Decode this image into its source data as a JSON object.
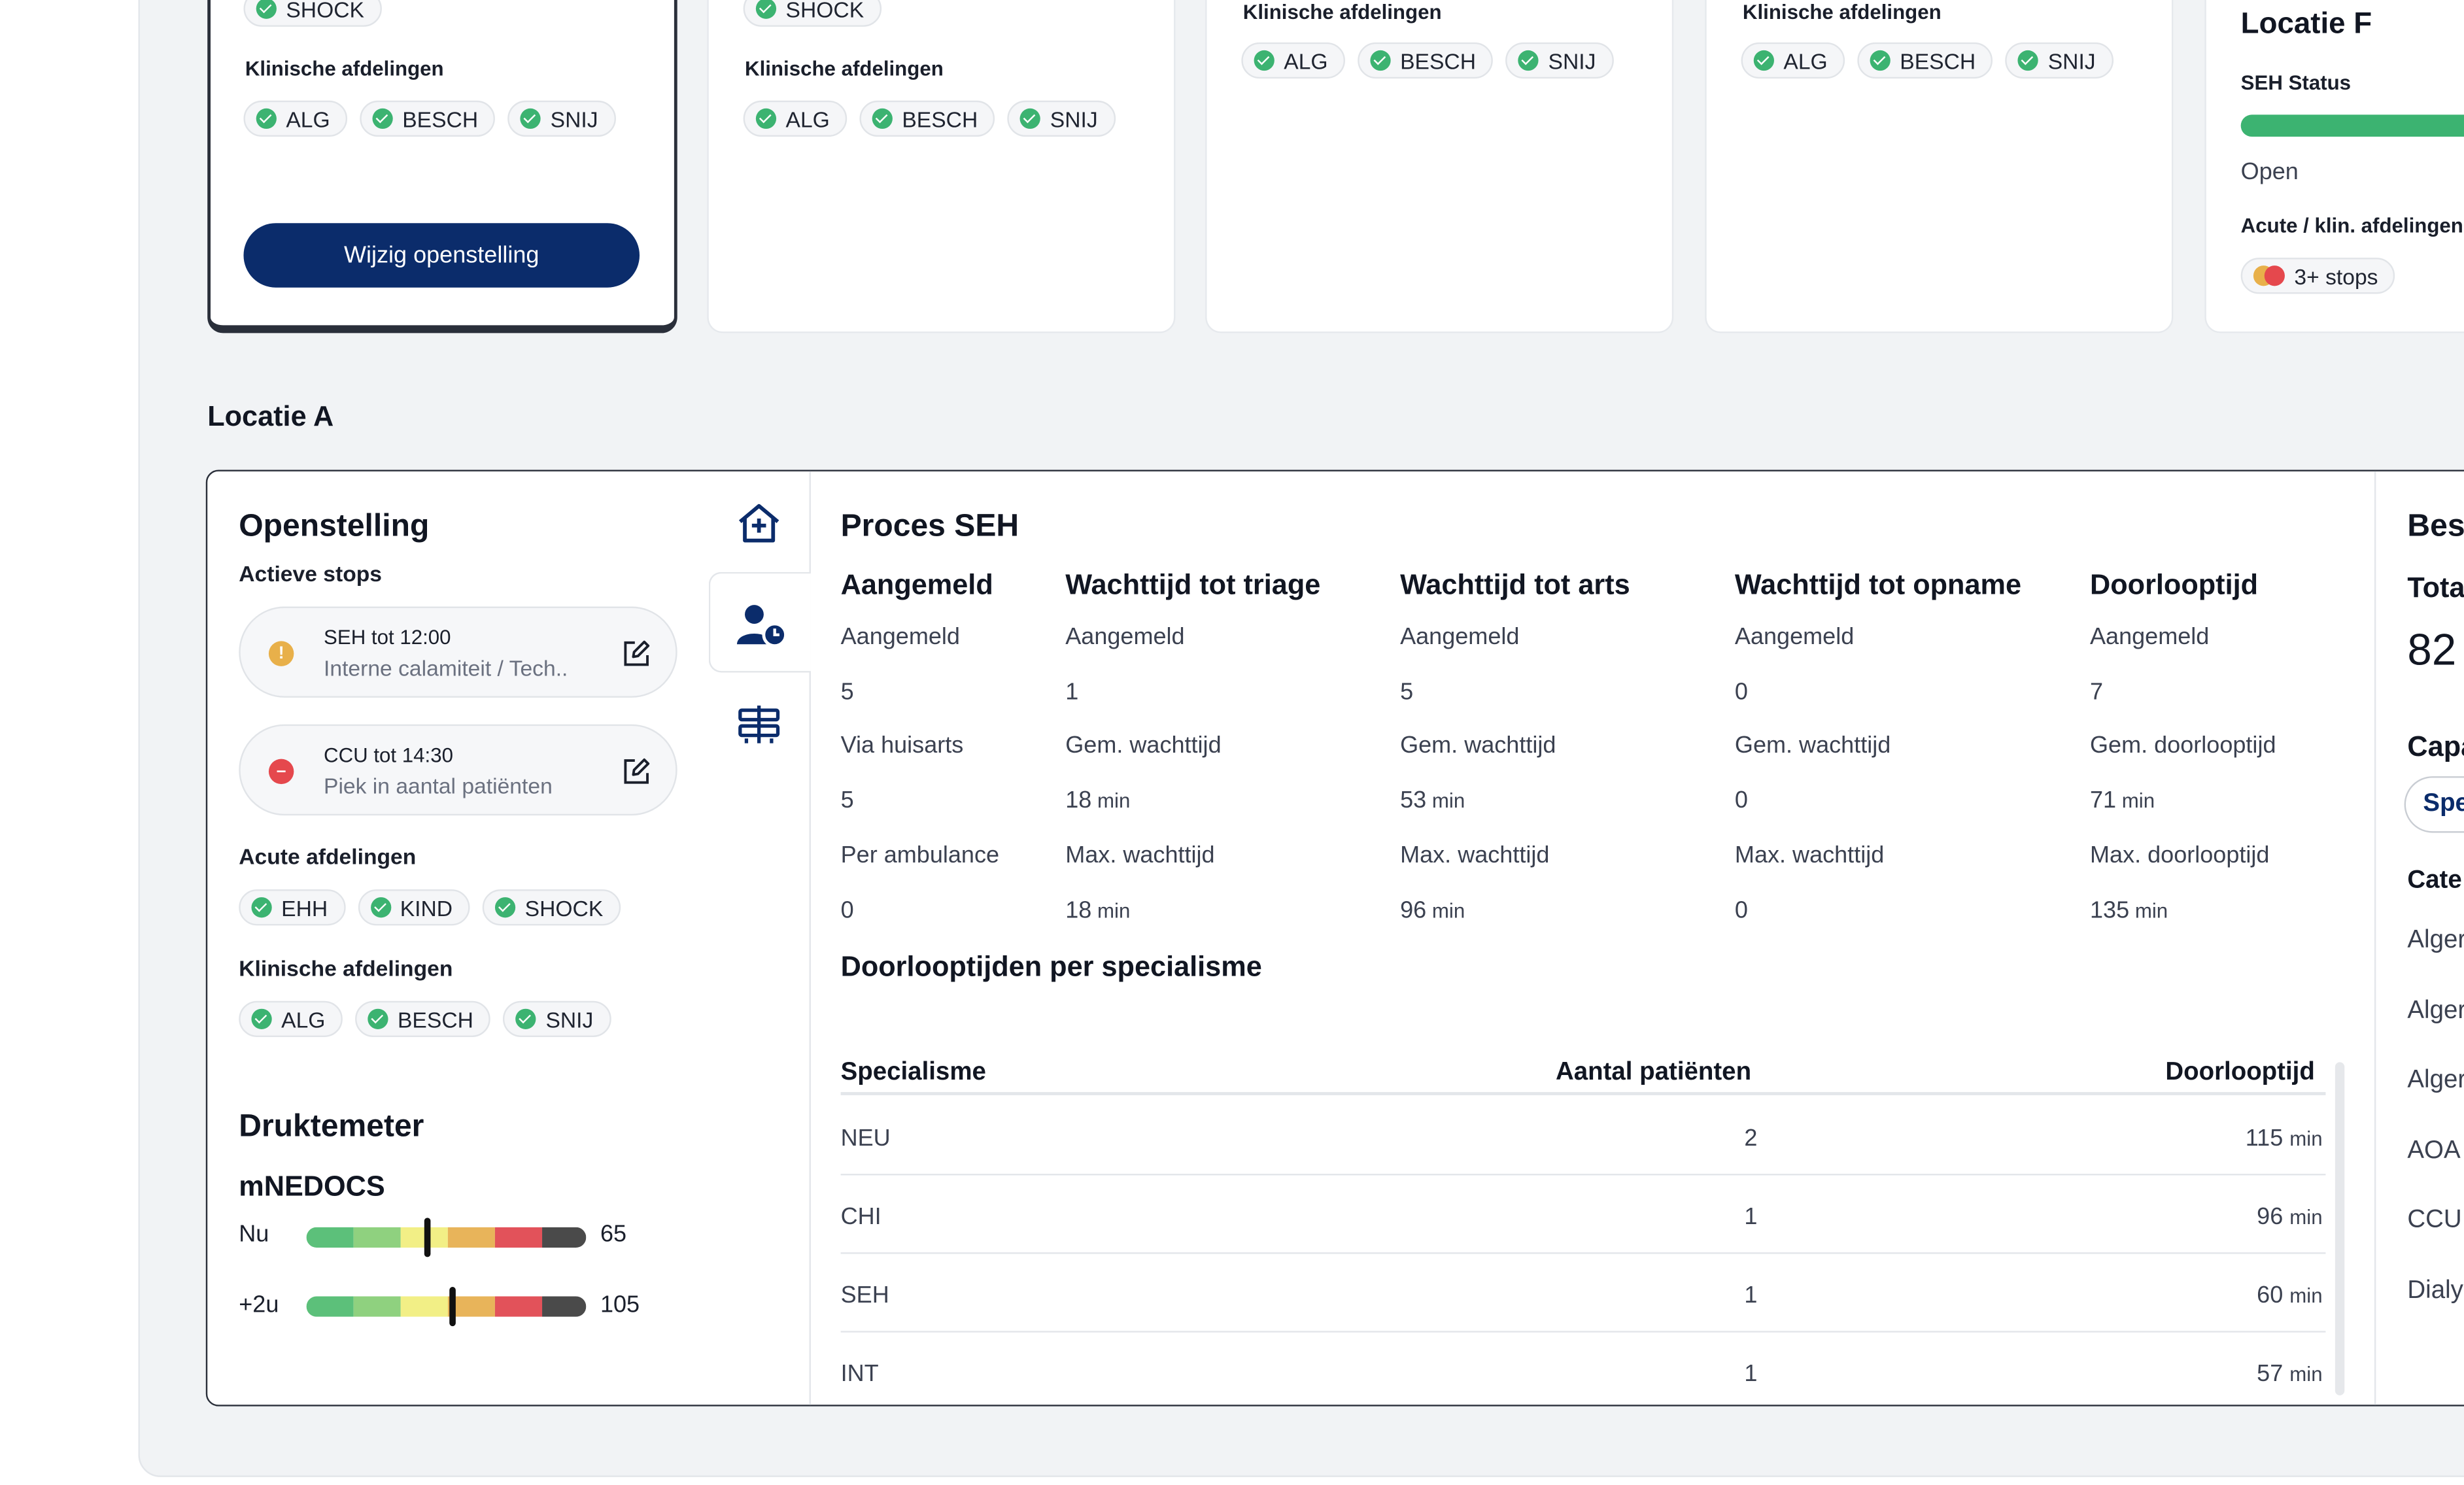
{
  "top_cards": {
    "card1": {
      "acute_partial": "SHOCK",
      "clin_label": "Klinische afdelingen",
      "clin": [
        "ALG",
        "BESCH",
        "SNIJ"
      ],
      "button": "Wijzig openstelling"
    },
    "card2": {
      "acute_partial": "SHOCK",
      "clin_label": "Klinische afdelingen",
      "clin": [
        "ALG",
        "BESCH",
        "SNIJ"
      ]
    },
    "card3": {
      "clin_label": "Klinische afdelingen",
      "clin": [
        "ALG",
        "BESCH",
        "SNIJ"
      ]
    },
    "card4": {
      "clin_label": "Klinische afdelingen",
      "clin": [
        "ALG",
        "BESCH",
        "SNIJ"
      ]
    },
    "card5": {
      "title": "Locatie F",
      "status_label": "SEH Status",
      "status_value": "Open",
      "acute_label": "Acute / klin. afdelingen",
      "stops_chip": "3+ stops"
    }
  },
  "location": {
    "title": "Locatie A"
  },
  "openstelling": {
    "title": "Openstelling",
    "stops_label": "Actieve stops",
    "stops": [
      {
        "title": "SEH tot 12:00",
        "subtitle": "Interne calamiteit / Tech..",
        "type": "warning",
        "color": "#e8b04a"
      },
      {
        "title": "CCU tot 14:30",
        "subtitle": "Piek in aantal patiënten",
        "type": "error",
        "color": "#e5484d"
      }
    ],
    "acute_label": "Acute afdelingen",
    "acute": [
      "EHH",
      "KIND",
      "SHOCK"
    ],
    "clin_label": "Klinische afdelingen",
    "clin": [
      "ALG",
      "BESCH",
      "SNIJ"
    ]
  },
  "druktemeter": {
    "title": "Druktemeter",
    "subtitle": "mNEDOCS",
    "rows": [
      {
        "label": "Nu",
        "value": "65",
        "level": 0.43
      },
      {
        "label": "+2u",
        "value": "105",
        "level": 0.52
      }
    ],
    "segment_colors": [
      "#5cc07a",
      "#8fd17f",
      "#f2ef86",
      "#e8b45a",
      "#e2525a",
      "#4a4a4a"
    ]
  },
  "proces": {
    "title": "Proces SEH",
    "columns": [
      {
        "header": "Aangemeld",
        "l1": "Aangemeld",
        "v1": "5",
        "l2": "Via huisarts",
        "v2": "5",
        "l3": "Per ambulance",
        "v3": "0"
      },
      {
        "header": "Wachttijd tot triage",
        "l1": "Aangemeld",
        "v1": "1",
        "l2": "Gem. wachttijd",
        "v2": "18",
        "u2": "min",
        "l3": "Max. wachttijd",
        "v3": "18",
        "u3": "min"
      },
      {
        "header": "Wachttijd tot arts",
        "l1": "Aangemeld",
        "v1": "5",
        "l2": "Gem. wachttijd",
        "v2": "53",
        "u2": "min",
        "l3": "Max. wachttijd",
        "v3": "96",
        "u3": "min"
      },
      {
        "header": "Wachttijd tot opname",
        "l1": "Aangemeld",
        "v1": "0",
        "l2": "Gem. wachttijd",
        "v2": "0",
        "l3": "Max. wachttijd",
        "v3": "0"
      },
      {
        "header": "Doorlooptijd",
        "l1": "Aangemeld",
        "v1": "7",
        "l2": "Gem. doorlooptijd",
        "v2": "71",
        "u2": "min",
        "l3": "Max. doorlooptijd",
        "v3": "135",
        "u3": "min"
      }
    ]
  },
  "specialisme": {
    "title": "Doorlooptijden per specialisme",
    "headers": {
      "spec": "Specialisme",
      "count": "Aantal patiënten",
      "time": "Doorlooptijd"
    },
    "rows": [
      {
        "spec": "NEU",
        "count": "2",
        "time": "115",
        "unit": "min"
      },
      {
        "spec": "CHI",
        "count": "1",
        "time": "96",
        "unit": "min"
      },
      {
        "spec": "SEH",
        "count": "1",
        "time": "60",
        "unit": "min"
      },
      {
        "spec": "INT",
        "count": "1",
        "time": "57",
        "unit": "min"
      }
    ]
  },
  "right_panel": {
    "title_partial": "Bes",
    "total_label_partial": "Tota",
    "total_value_partial": "82 ,",
    "capacity_partial": "Capa",
    "pill_partial": "Spe",
    "category_partial": "Cate",
    "items": [
      "Alger",
      "Alger",
      "Alger",
      "AOA",
      "CCU",
      "Dialy"
    ]
  }
}
